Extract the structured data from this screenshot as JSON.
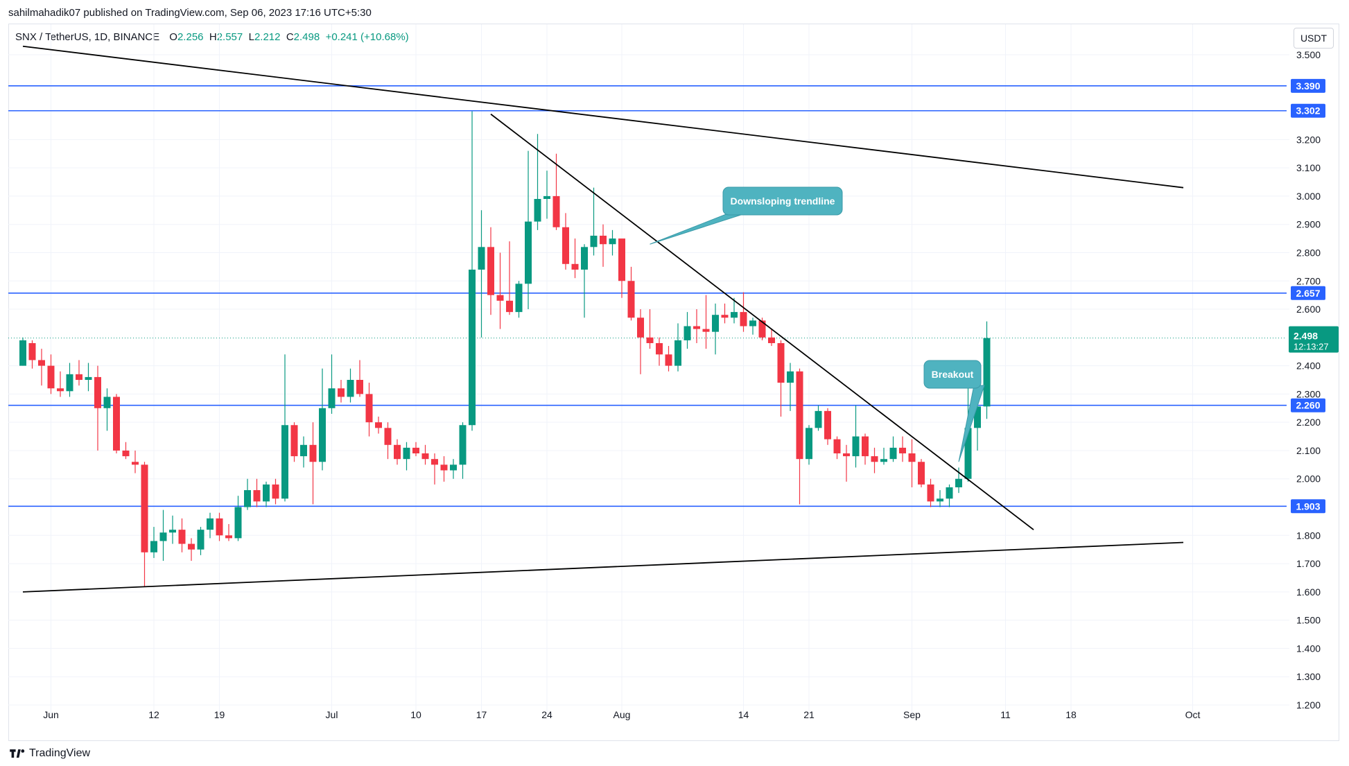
{
  "publisher": "sahilmahadik07 published on TradingView.com, Sep 06, 2023 17:16 UTC+5:30",
  "legend": {
    "pair": "SNX / TetherUS, 1D, BINANCE",
    "open_label": "O",
    "open": "2.256",
    "high_label": "H",
    "high": "2.557",
    "low_label": "L",
    "low": "2.212",
    "close_label": "C",
    "close": "2.498",
    "change": "+0.241 (+10.68%)"
  },
  "currency_button": "USDT",
  "brand": "TradingView",
  "colors": {
    "up": "#089981",
    "down": "#f23645",
    "level": "#2962ff",
    "trendline": "#000000",
    "callout": "#4fb3c0"
  },
  "chart_data": {
    "type": "candlestick",
    "symbol": "SNX / TetherUS",
    "interval": "1D",
    "ylim": [
      1.18,
      3.58
    ],
    "y_ticks": [
      "1.200",
      "1.300",
      "1.400",
      "1.500",
      "1.600",
      "1.700",
      "1.800",
      "2.000",
      "2.100",
      "2.200",
      "2.300",
      "2.400",
      "2.600",
      "2.700",
      "2.800",
      "2.900",
      "3.000",
      "3.100",
      "3.200",
      "3.500"
    ],
    "x_start": "2023-05-29",
    "x_end": "2023-10-01",
    "x_ticks": [
      {
        "date": "2023-06-01",
        "label": "Jun"
      },
      {
        "date": "2023-06-12",
        "label": "12"
      },
      {
        "date": "2023-06-19",
        "label": "19"
      },
      {
        "date": "2023-07-01",
        "label": "Jul"
      },
      {
        "date": "2023-07-10",
        "label": "10"
      },
      {
        "date": "2023-07-17",
        "label": "17"
      },
      {
        "date": "2023-07-24",
        "label": "24"
      },
      {
        "date": "2023-08-01",
        "label": "Aug"
      },
      {
        "date": "2023-08-14",
        "label": "14"
      },
      {
        "date": "2023-08-21",
        "label": "21"
      },
      {
        "date": "2023-09-01",
        "label": "Sep"
      },
      {
        "date": "2023-09-11",
        "label": "11"
      },
      {
        "date": "2023-09-18",
        "label": "18"
      },
      {
        "date": "2023-10-01",
        "label": "Oct"
      }
    ],
    "price_levels": [
      {
        "value": 3.39,
        "label": "3.390"
      },
      {
        "value": 3.302,
        "label": "3.302"
      },
      {
        "value": 2.657,
        "label": "2.657"
      },
      {
        "value": 2.26,
        "label": "2.260"
      },
      {
        "value": 1.903,
        "label": "1.903"
      }
    ],
    "current_price": {
      "value": 2.498,
      "label": "2.498",
      "countdown": "12:13:27"
    },
    "candles": [
      {
        "date": "2023-05-29",
        "o": 2.4,
        "h": 2.5,
        "l": 2.4,
        "c": 2.49
      },
      {
        "date": "2023-05-30",
        "o": 2.48,
        "h": 2.49,
        "l": 2.39,
        "c": 2.42
      },
      {
        "date": "2023-05-31",
        "o": 2.42,
        "h": 2.46,
        "l": 2.33,
        "c": 2.4
      },
      {
        "date": "2023-06-01",
        "o": 2.4,
        "h": 2.44,
        "l": 2.3,
        "c": 2.32
      },
      {
        "date": "2023-06-02",
        "o": 2.32,
        "h": 2.38,
        "l": 2.29,
        "c": 2.31
      },
      {
        "date": "2023-06-03",
        "o": 2.31,
        "h": 2.41,
        "l": 2.29,
        "c": 2.37
      },
      {
        "date": "2023-06-04",
        "o": 2.37,
        "h": 2.42,
        "l": 2.33,
        "c": 2.35
      },
      {
        "date": "2023-06-05",
        "o": 2.35,
        "h": 2.41,
        "l": 2.31,
        "c": 2.36
      },
      {
        "date": "2023-06-06",
        "o": 2.36,
        "h": 2.4,
        "l": 2.1,
        "c": 2.25
      },
      {
        "date": "2023-06-07",
        "o": 2.25,
        "h": 2.32,
        "l": 2.17,
        "c": 2.29
      },
      {
        "date": "2023-06-08",
        "o": 2.29,
        "h": 2.3,
        "l": 2.09,
        "c": 2.1
      },
      {
        "date": "2023-06-09",
        "o": 2.1,
        "h": 2.13,
        "l": 2.07,
        "c": 2.08
      },
      {
        "date": "2023-06-10",
        "o": 2.06,
        "h": 2.1,
        "l": 2.02,
        "c": 2.05
      },
      {
        "date": "2023-06-11",
        "o": 2.05,
        "h": 2.06,
        "l": 1.62,
        "c": 1.74
      },
      {
        "date": "2023-06-12",
        "o": 1.74,
        "h": 1.83,
        "l": 1.72,
        "c": 1.78
      },
      {
        "date": "2023-06-13",
        "o": 1.78,
        "h": 1.89,
        "l": 1.71,
        "c": 1.81
      },
      {
        "date": "2023-06-14",
        "o": 1.81,
        "h": 1.87,
        "l": 1.77,
        "c": 1.82
      },
      {
        "date": "2023-06-15",
        "o": 1.82,
        "h": 1.86,
        "l": 1.74,
        "c": 1.77
      },
      {
        "date": "2023-06-16",
        "o": 1.77,
        "h": 1.79,
        "l": 1.71,
        "c": 1.75
      },
      {
        "date": "2023-06-17",
        "o": 1.75,
        "h": 1.83,
        "l": 1.73,
        "c": 1.82
      },
      {
        "date": "2023-06-18",
        "o": 1.82,
        "h": 1.88,
        "l": 1.79,
        "c": 1.86
      },
      {
        "date": "2023-06-19",
        "o": 1.86,
        "h": 1.88,
        "l": 1.78,
        "c": 1.8
      },
      {
        "date": "2023-06-20",
        "o": 1.8,
        "h": 1.84,
        "l": 1.78,
        "c": 1.79
      },
      {
        "date": "2023-06-21",
        "o": 1.79,
        "h": 1.94,
        "l": 1.78,
        "c": 1.9
      },
      {
        "date": "2023-06-22",
        "o": 1.9,
        "h": 2.0,
        "l": 1.89,
        "c": 1.96
      },
      {
        "date": "2023-06-23",
        "o": 1.96,
        "h": 2.0,
        "l": 1.9,
        "c": 1.92
      },
      {
        "date": "2023-06-24",
        "o": 1.92,
        "h": 1.99,
        "l": 1.9,
        "c": 1.98
      },
      {
        "date": "2023-06-25",
        "o": 1.98,
        "h": 2.0,
        "l": 1.91,
        "c": 1.93
      },
      {
        "date": "2023-06-26",
        "o": 1.93,
        "h": 2.44,
        "l": 1.92,
        "c": 2.19
      },
      {
        "date": "2023-06-27",
        "o": 2.19,
        "h": 2.2,
        "l": 2.06,
        "c": 2.08
      },
      {
        "date": "2023-06-28",
        "o": 2.08,
        "h": 2.15,
        "l": 2.04,
        "c": 2.12
      },
      {
        "date": "2023-06-29",
        "o": 2.12,
        "h": 2.2,
        "l": 1.91,
        "c": 2.06
      },
      {
        "date": "2023-06-30",
        "o": 2.06,
        "h": 2.39,
        "l": 2.03,
        "c": 2.25
      },
      {
        "date": "2023-07-01",
        "o": 2.25,
        "h": 2.44,
        "l": 2.23,
        "c": 2.32
      },
      {
        "date": "2023-07-02",
        "o": 2.32,
        "h": 2.35,
        "l": 2.27,
        "c": 2.29
      },
      {
        "date": "2023-07-03",
        "o": 2.29,
        "h": 2.39,
        "l": 2.27,
        "c": 2.35
      },
      {
        "date": "2023-07-04",
        "o": 2.35,
        "h": 2.42,
        "l": 2.29,
        "c": 2.3
      },
      {
        "date": "2023-07-05",
        "o": 2.3,
        "h": 2.34,
        "l": 2.15,
        "c": 2.2
      },
      {
        "date": "2023-07-06",
        "o": 2.2,
        "h": 2.22,
        "l": 2.16,
        "c": 2.18
      },
      {
        "date": "2023-07-07",
        "o": 2.18,
        "h": 2.2,
        "l": 2.07,
        "c": 2.12
      },
      {
        "date": "2023-07-08",
        "o": 2.12,
        "h": 2.14,
        "l": 2.05,
        "c": 2.07
      },
      {
        "date": "2023-07-09",
        "o": 2.07,
        "h": 2.13,
        "l": 2.03,
        "c": 2.11
      },
      {
        "date": "2023-07-10",
        "o": 2.11,
        "h": 2.13,
        "l": 2.08,
        "c": 2.09
      },
      {
        "date": "2023-07-11",
        "o": 2.09,
        "h": 2.12,
        "l": 2.05,
        "c": 2.07
      },
      {
        "date": "2023-07-12",
        "o": 2.07,
        "h": 2.09,
        "l": 1.98,
        "c": 2.05
      },
      {
        "date": "2023-07-13",
        "o": 2.05,
        "h": 2.08,
        "l": 1.99,
        "c": 2.03
      },
      {
        "date": "2023-07-14",
        "o": 2.03,
        "h": 2.07,
        "l": 2.0,
        "c": 2.05
      },
      {
        "date": "2023-07-15",
        "o": 2.05,
        "h": 2.2,
        "l": 2.0,
        "c": 2.19
      },
      {
        "date": "2023-07-16",
        "o": 2.19,
        "h": 3.3,
        "l": 2.17,
        "c": 2.74
      },
      {
        "date": "2023-07-17",
        "o": 2.74,
        "h": 2.95,
        "l": 2.5,
        "c": 2.82
      },
      {
        "date": "2023-07-18",
        "o": 2.82,
        "h": 2.89,
        "l": 2.58,
        "c": 2.65
      },
      {
        "date": "2023-07-19",
        "o": 2.65,
        "h": 2.8,
        "l": 2.53,
        "c": 2.63
      },
      {
        "date": "2023-07-20",
        "o": 2.63,
        "h": 2.84,
        "l": 2.58,
        "c": 2.59
      },
      {
        "date": "2023-07-21",
        "o": 2.59,
        "h": 2.7,
        "l": 2.57,
        "c": 2.69
      },
      {
        "date": "2023-07-22",
        "o": 2.69,
        "h": 3.16,
        "l": 2.6,
        "c": 2.91
      },
      {
        "date": "2023-07-23",
        "o": 2.91,
        "h": 3.22,
        "l": 2.88,
        "c": 2.99
      },
      {
        "date": "2023-07-24",
        "o": 2.99,
        "h": 3.09,
        "l": 2.92,
        "c": 3.0
      },
      {
        "date": "2023-07-25",
        "o": 3.0,
        "h": 3.15,
        "l": 2.88,
        "c": 2.89
      },
      {
        "date": "2023-07-26",
        "o": 2.89,
        "h": 2.94,
        "l": 2.74,
        "c": 2.76
      },
      {
        "date": "2023-07-27",
        "o": 2.76,
        "h": 2.85,
        "l": 2.71,
        "c": 2.74
      },
      {
        "date": "2023-07-28",
        "o": 2.74,
        "h": 2.83,
        "l": 2.57,
        "c": 2.82
      },
      {
        "date": "2023-07-29",
        "o": 2.82,
        "h": 3.03,
        "l": 2.79,
        "c": 2.86
      },
      {
        "date": "2023-07-30",
        "o": 2.86,
        "h": 2.9,
        "l": 2.75,
        "c": 2.83
      },
      {
        "date": "2023-07-31",
        "o": 2.83,
        "h": 2.88,
        "l": 2.79,
        "c": 2.85
      },
      {
        "date": "2023-08-01",
        "o": 2.85,
        "h": 2.84,
        "l": 2.64,
        "c": 2.7
      },
      {
        "date": "2023-08-02",
        "o": 2.7,
        "h": 2.75,
        "l": 2.56,
        "c": 2.57
      },
      {
        "date": "2023-08-03",
        "o": 2.57,
        "h": 2.6,
        "l": 2.37,
        "c": 2.5
      },
      {
        "date": "2023-08-04",
        "o": 2.5,
        "h": 2.6,
        "l": 2.46,
        "c": 2.48
      },
      {
        "date": "2023-08-05",
        "o": 2.48,
        "h": 2.5,
        "l": 2.4,
        "c": 2.44
      },
      {
        "date": "2023-08-06",
        "o": 2.44,
        "h": 2.47,
        "l": 2.38,
        "c": 2.4
      },
      {
        "date": "2023-08-07",
        "o": 2.4,
        "h": 2.55,
        "l": 2.38,
        "c": 2.49
      },
      {
        "date": "2023-08-08",
        "o": 2.49,
        "h": 2.59,
        "l": 2.46,
        "c": 2.54
      },
      {
        "date": "2023-08-09",
        "o": 2.54,
        "h": 2.6,
        "l": 2.48,
        "c": 2.53
      },
      {
        "date": "2023-08-10",
        "o": 2.53,
        "h": 2.65,
        "l": 2.46,
        "c": 2.52
      },
      {
        "date": "2023-08-11",
        "o": 2.52,
        "h": 2.62,
        "l": 2.44,
        "c": 2.58
      },
      {
        "date": "2023-08-12",
        "o": 2.58,
        "h": 2.62,
        "l": 2.55,
        "c": 2.57
      },
      {
        "date": "2023-08-13",
        "o": 2.57,
        "h": 2.64,
        "l": 2.55,
        "c": 2.59
      },
      {
        "date": "2023-08-14",
        "o": 2.59,
        "h": 2.66,
        "l": 2.52,
        "c": 2.54
      },
      {
        "date": "2023-08-15",
        "o": 2.54,
        "h": 2.57,
        "l": 2.51,
        "c": 2.56
      },
      {
        "date": "2023-08-16",
        "o": 2.56,
        "h": 2.57,
        "l": 2.49,
        "c": 2.5
      },
      {
        "date": "2023-08-17",
        "o": 2.5,
        "h": 2.53,
        "l": 2.47,
        "c": 2.48
      },
      {
        "date": "2023-08-18",
        "o": 2.48,
        "h": 2.49,
        "l": 2.22,
        "c": 2.34
      },
      {
        "date": "2023-08-19",
        "o": 2.34,
        "h": 2.41,
        "l": 2.24,
        "c": 2.38
      },
      {
        "date": "2023-08-20",
        "o": 2.38,
        "h": 2.39,
        "l": 1.91,
        "c": 2.07
      },
      {
        "date": "2023-08-21",
        "o": 2.07,
        "h": 2.19,
        "l": 2.05,
        "c": 2.18
      },
      {
        "date": "2023-08-22",
        "o": 2.18,
        "h": 2.26,
        "l": 2.17,
        "c": 2.24
      },
      {
        "date": "2023-08-23",
        "o": 2.24,
        "h": 2.25,
        "l": 2.12,
        "c": 2.14
      },
      {
        "date": "2023-08-24",
        "o": 2.14,
        "h": 2.15,
        "l": 2.07,
        "c": 2.09
      },
      {
        "date": "2023-08-25",
        "o": 2.09,
        "h": 2.12,
        "l": 1.99,
        "c": 2.08
      },
      {
        "date": "2023-08-26",
        "o": 2.08,
        "h": 2.26,
        "l": 2.04,
        "c": 2.15
      },
      {
        "date": "2023-08-27",
        "o": 2.15,
        "h": 2.16,
        "l": 2.05,
        "c": 2.08
      },
      {
        "date": "2023-08-28",
        "o": 2.08,
        "h": 2.11,
        "l": 2.02,
        "c": 2.06
      },
      {
        "date": "2023-08-29",
        "o": 2.06,
        "h": 2.11,
        "l": 2.05,
        "c": 2.07
      },
      {
        "date": "2023-08-30",
        "o": 2.07,
        "h": 2.15,
        "l": 2.06,
        "c": 2.11
      },
      {
        "date": "2023-08-31",
        "o": 2.11,
        "h": 2.15,
        "l": 2.06,
        "c": 2.09
      },
      {
        "date": "2023-09-01",
        "o": 2.09,
        "h": 2.14,
        "l": 1.97,
        "c": 2.06
      },
      {
        "date": "2023-09-02",
        "o": 2.06,
        "h": 2.07,
        "l": 1.97,
        "c": 1.98
      },
      {
        "date": "2023-09-03",
        "o": 1.98,
        "h": 2.0,
        "l": 1.9,
        "c": 1.92
      },
      {
        "date": "2023-09-04",
        "o": 1.92,
        "h": 1.96,
        "l": 1.9,
        "c": 1.93
      },
      {
        "date": "2023-09-05",
        "o": 1.93,
        "h": 1.98,
        "l": 1.9,
        "c": 1.97
      },
      {
        "date": "2023-09-06",
        "o": 1.97,
        "h": 2.04,
        "l": 1.95,
        "c": 2.0
      },
      {
        "date": "2023-09-07",
        "o": 2.0,
        "h": 2.32,
        "l": 1.99,
        "c": 2.18
      },
      {
        "date": "2023-09-08",
        "o": 2.18,
        "h": 2.3,
        "l": 2.1,
        "c": 2.256
      },
      {
        "date": "2023-09-09",
        "o": 2.256,
        "h": 2.557,
        "l": 2.212,
        "c": 2.498
      }
    ],
    "trendlines": [
      {
        "name": "upper-resistance",
        "from": {
          "date": "2023-05-29",
          "value": 3.53
        },
        "to": {
          "date": "2023-09-30",
          "value": 3.03
        }
      },
      {
        "name": "downsloping-trendline",
        "from": {
          "date": "2023-07-18",
          "value": 3.29
        },
        "to": {
          "date": "2023-09-14",
          "value": 1.82
        }
      },
      {
        "name": "lower-support",
        "from": {
          "date": "2023-05-29",
          "value": 1.6
        },
        "to": {
          "date": "2023-09-30",
          "value": 1.775
        }
      }
    ],
    "annotations": [
      {
        "text": "Downsloping trendline",
        "anchor_date": "2023-08-04",
        "anchor_value": 2.83
      },
      {
        "text": "Breakout",
        "anchor_date": "2023-09-06",
        "anchor_value": 2.06
      }
    ]
  }
}
